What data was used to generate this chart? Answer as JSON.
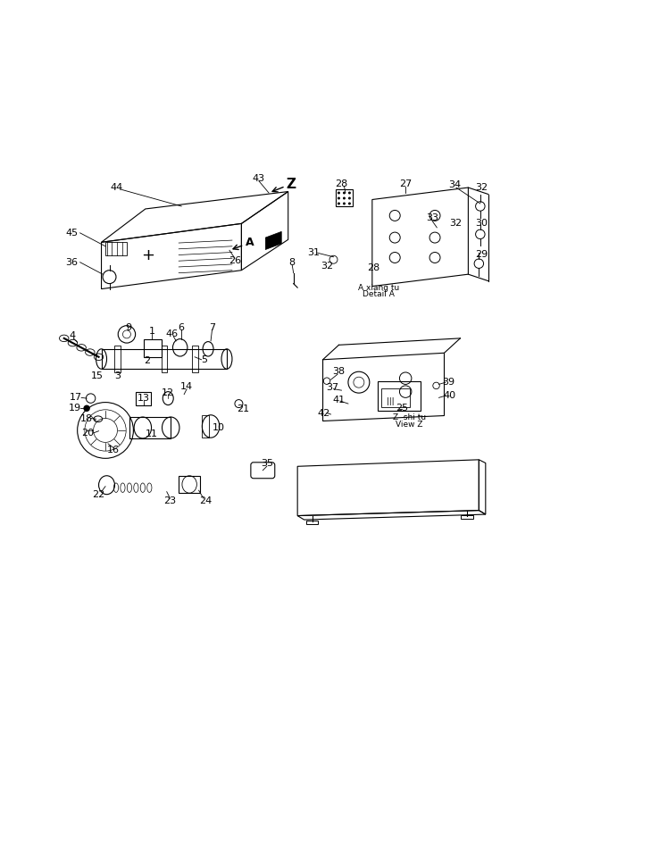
{
  "title": "",
  "bg_color": "#ffffff",
  "line_color": "#000000",
  "fig_width": 7.47,
  "fig_height": 9.43,
  "dpi": 100,
  "detail_a_label1": "A xiang tu",
  "detail_a_label2": "Detail A",
  "view_z_label1": "Z shi tu",
  "view_z_label2": "View Z"
}
